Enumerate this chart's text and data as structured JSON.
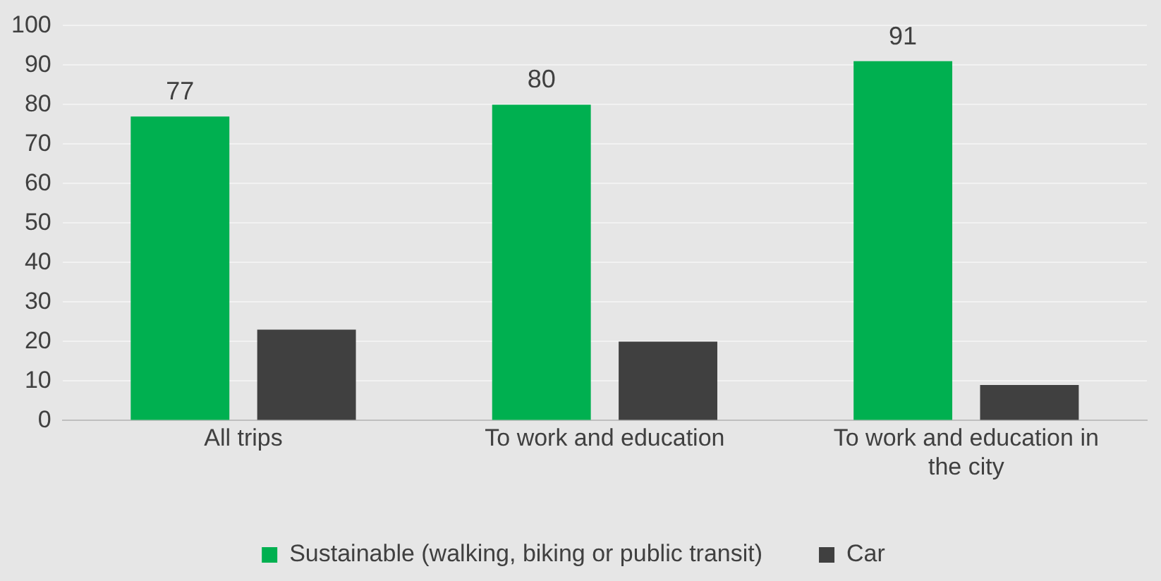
{
  "chart_data": {
    "type": "bar",
    "categories": [
      "All trips",
      "To work and education",
      "To work and education in the city"
    ],
    "series": [
      {
        "name": "Sustainable (walking, biking or public transit)",
        "color": "#00b050",
        "values": [
          77,
          80,
          91
        ],
        "value_labels": [
          "77",
          "80",
          "91"
        ]
      },
      {
        "name": "Car",
        "color": "#404040",
        "values": [
          23,
          20,
          9
        ]
      }
    ],
    "ylim": [
      0,
      100
    ],
    "yticks": [
      0,
      10,
      20,
      30,
      40,
      50,
      60,
      70,
      80,
      90,
      100
    ],
    "grid": "y",
    "legend": "bottom"
  }
}
